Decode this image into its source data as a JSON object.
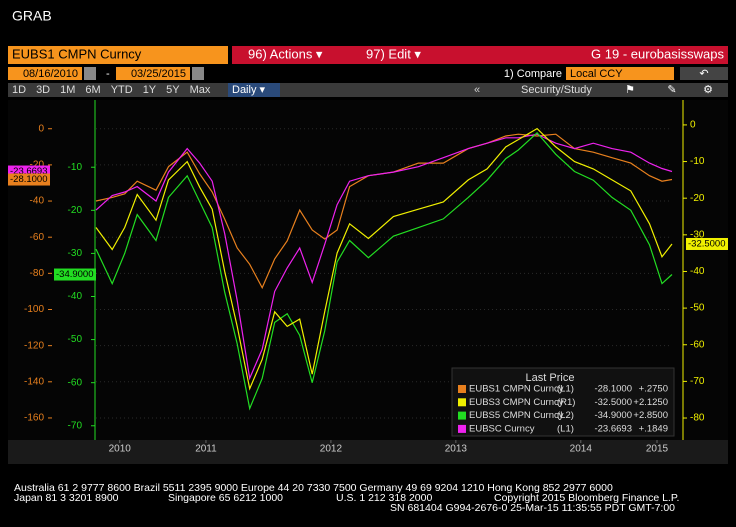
{
  "ui": {
    "app_title": "GRAB",
    "security": "EUBS1 CMPN Curncy",
    "actions": "96) Actions ▾",
    "edit": "97) Edit ▾",
    "page_name": "G 19 - eurobasisswaps",
    "start_date": "08/16/2010",
    "end_date": "03/25/2015",
    "compare_label": "1) Compare",
    "compare_value": "Local CCY",
    "periods": [
      "1D",
      "3D",
      "1M",
      "6M",
      "YTD",
      "1Y",
      "5Y",
      "Max"
    ],
    "frequency": "Daily ▾",
    "study": "Security/Study",
    "footer": [
      "Australia 61 2 9777 8600 Brazil 5511 2395 9000 Europe 44 20 7330 7500 Germany 49 69 9204 1210 Hong Kong 852 2977 6000",
      "Japan 81 3 3201 8900",
      "Singapore 65 6212 1000",
      "U.S. 1 212 318 2000",
      "Copyright 2015 Bloomberg Finance L.P.",
      "SN 681404 G994-2676-0 25-Mar-15 11:35:55 PDT  GMT-7:00"
    ]
  },
  "chart_data": {
    "type": "line",
    "legend_title": "Last Price",
    "grid": true,
    "x": [
      2010.62,
      2010.75,
      2010.85,
      2010.95,
      2011.1,
      2011.2,
      2011.35,
      2011.45,
      2011.55,
      2011.65,
      2011.75,
      2011.85,
      2011.95,
      2012.05,
      2012.15,
      2012.25,
      2012.35,
      2012.45,
      2012.55,
      2012.65,
      2012.8,
      2013.0,
      2013.2,
      2013.4,
      2013.6,
      2013.75,
      2013.9,
      2014.0,
      2014.15,
      2014.3,
      2014.45,
      2014.6,
      2014.75,
      2014.9,
      2015.05,
      2015.15,
      2015.23
    ],
    "xlim": [
      2010.62,
      2015.23
    ],
    "xticks": [
      {
        "value": 2010.81,
        "label": "2010"
      },
      {
        "value": 2011.5,
        "label": "2011"
      },
      {
        "value": 2012.5,
        "label": "2012"
      },
      {
        "value": 2013.5,
        "label": "2013"
      },
      {
        "value": 2014.5,
        "label": "2014"
      },
      {
        "value": 2015.11,
        "label": "2015"
      }
    ],
    "ylim": [
      -172.2,
      15.9
    ],
    "yticks": [
      0,
      -20,
      -40,
      -60,
      -80,
      -100,
      -120,
      -140,
      -160
    ],
    "y3lim": [
      -73.3,
      5.6
    ],
    "y3ticks": [
      -10,
      -20,
      -30,
      -40,
      -50,
      -60,
      -70
    ],
    "y2lim": [
      -86,
      6.8
    ],
    "y2ticks": [
      0,
      -10,
      -20,
      -30,
      -40,
      -50,
      -60,
      -70,
      -80
    ],
    "series": [
      {
        "name": "EUBS1 CMPN Curncy",
        "axis_label": "(L1)",
        "last": "-28.1000",
        "change": "+.2750",
        "color": "#e8801e",
        "axis": "y",
        "values": [
          -40,
          -38,
          -36,
          -29,
          -34,
          -21,
          -13,
          -25,
          -35,
          -50,
          -66,
          -75,
          -88,
          -72,
          -62,
          -45,
          -56,
          -61,
          -56,
          -32,
          -26,
          -24,
          -19,
          -19,
          -11,
          -8,
          -4,
          -3,
          -4,
          -3,
          -11,
          -13,
          -16,
          -19,
          -26,
          -29,
          -28.1
        ]
      },
      {
        "name": "EUBS3 CMPN Curncy",
        "axis_label": "(R1)",
        "last": "-32.5000",
        "change": "+2.1250",
        "color": "#f0f000",
        "axis": "y2",
        "values": [
          -28,
          -34,
          -28,
          -19,
          -26,
          -15,
          -10,
          -17,
          -23,
          -40,
          -55,
          -72,
          -64,
          -51,
          -55,
          -53,
          -68,
          -51,
          -35,
          -27,
          -31,
          -25,
          -23,
          -21,
          -15,
          -12,
          -6,
          -4,
          -1,
          -6,
          -10,
          -12,
          -15,
          -18,
          -27,
          -36,
          -32.5
        ]
      },
      {
        "name": "EUBS5 CMPN Curncy",
        "axis_label": "(L2)",
        "last": "-34.9000",
        "change": "+2.8500",
        "color": "#22dd22",
        "axis": "y3",
        "values": [
          -29,
          -37,
          -30,
          -21,
          -27,
          -17,
          -12,
          -18,
          -24,
          -39,
          -51,
          -66,
          -59,
          -46,
          -44,
          -49,
          -60,
          -48,
          -32,
          -27,
          -31,
          -26,
          -24,
          -22,
          -17,
          -13,
          -8,
          -6,
          -2,
          -7,
          -11,
          -13,
          -17,
          -20,
          -28,
          -37,
          -34.9
        ]
      },
      {
        "name": "EUBSC Curncy",
        "axis_label": "(L1)",
        "last": "-23.6693",
        "change": "+.1849",
        "color": "#ee22ee",
        "axis": "y",
        "values": [
          -45,
          -37,
          -35,
          -32,
          -40,
          -24,
          -11,
          -19,
          -29,
          -58,
          -95,
          -138,
          -122,
          -90,
          -77,
          -66,
          -85,
          -64,
          -42,
          -29,
          -26,
          -24,
          -21,
          -16,
          -11,
          -8,
          -5,
          -5,
          -3,
          -8,
          -11,
          -8,
          -11,
          -13,
          -19,
          -22,
          -23.67
        ]
      }
    ]
  }
}
